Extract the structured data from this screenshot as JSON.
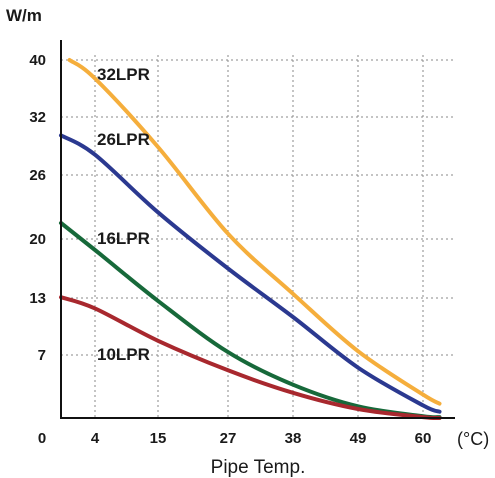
{
  "chart_data": {
    "type": "line",
    "ylabel": "W/m",
    "xlabel": "Pipe Temp.",
    "x_unit": "(°C)",
    "x_ticks": [
      "0",
      "4",
      "15",
      "27",
      "38",
      "49",
      "60"
    ],
    "y_ticks": [
      "7",
      "13",
      "20",
      "26",
      "32",
      "40"
    ],
    "grid": true,
    "series": [
      {
        "name": "32LPR",
        "color": "#F5AE3C",
        "points": [
          [
            1,
            40
          ],
          [
            4,
            37.4
          ],
          [
            15,
            28.9
          ],
          [
            27,
            20.5
          ],
          [
            38,
            13.5
          ],
          [
            49,
            7.4
          ],
          [
            60,
            2.6
          ],
          [
            63,
            1.6
          ]
        ]
      },
      {
        "name": "26LPR",
        "color": "#2B3990",
        "points": [
          [
            0,
            30.1
          ],
          [
            4,
            28.1
          ],
          [
            15,
            22.5
          ],
          [
            27,
            16.5
          ],
          [
            38,
            11.0
          ],
          [
            49,
            5.6
          ],
          [
            60,
            1.4
          ],
          [
            63,
            0.7
          ]
        ]
      },
      {
        "name": "16LPR",
        "color": "#17693A",
        "points": [
          [
            0,
            21.5
          ],
          [
            4,
            18.7
          ],
          [
            15,
            12.7
          ],
          [
            27,
            7.3
          ],
          [
            38,
            3.7
          ],
          [
            49,
            1.3
          ],
          [
            60,
            0.2
          ],
          [
            63,
            0.1
          ]
        ]
      },
      {
        "name": "10LPR",
        "color": "#A8282E",
        "points": [
          [
            0,
            13.1
          ],
          [
            4,
            11.9
          ],
          [
            15,
            8.5
          ],
          [
            27,
            5.3
          ],
          [
            38,
            2.8
          ],
          [
            49,
            1.0
          ],
          [
            60,
            0.1
          ],
          [
            63,
            0.0
          ]
        ]
      }
    ]
  }
}
